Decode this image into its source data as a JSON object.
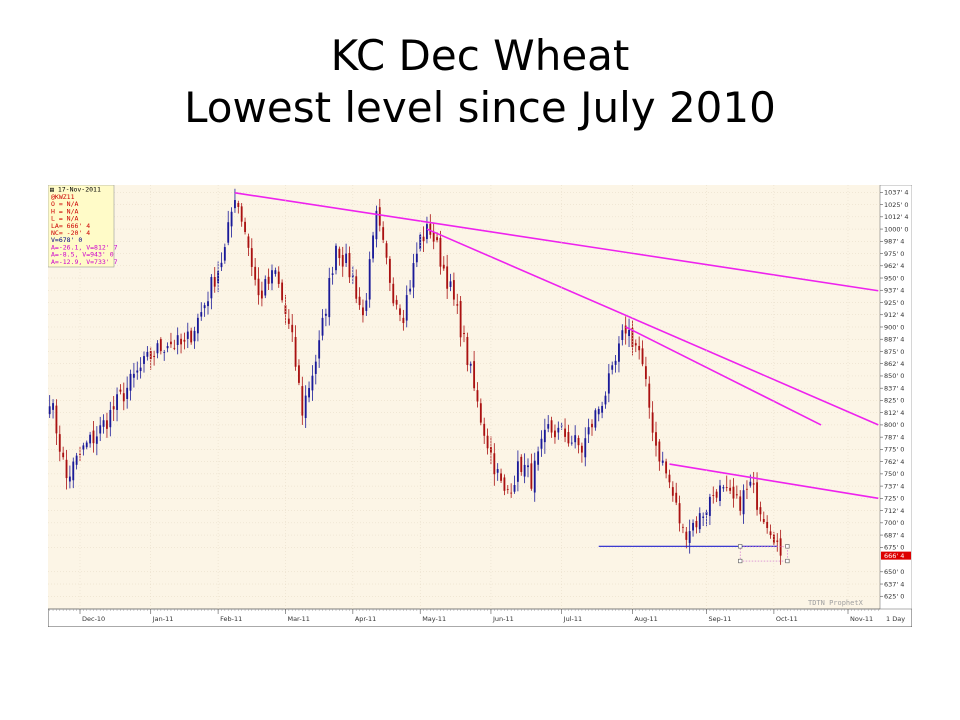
{
  "slide": {
    "title_line1": "KC Dec Wheat",
    "title_line2": "Lowest level since July 2010"
  },
  "chart_data": {
    "type": "candlestick",
    "symbol": "@KWZ11",
    "date": "17-Nov-2011",
    "info_lines": [
      {
        "text": "@KWZ11",
        "color": "#cc0000"
      },
      {
        "text": "O = N/A",
        "color": "#cc0000"
      },
      {
        "text": "H = N/A",
        "color": "#cc0000"
      },
      {
        "text": "L = N/A",
        "color": "#cc0000"
      },
      {
        "text": "LA= 666' 4",
        "color": "#cc0000"
      },
      {
        "text": "NC= -20' 4",
        "color": "#cc0000"
      },
      {
        "text": "V=678' 0",
        "color": "#000080"
      },
      {
        "text": "A=-26.1, V=812' 7",
        "color": "#cc00cc"
      },
      {
        "text": "A=-8.5, V=943' 0",
        "color": "#cc00cc"
      },
      {
        "text": "A=-12.9, V=733' 7",
        "color": "#cc00cc"
      }
    ],
    "y_ticks": [
      "1037' 4",
      "1025' 0",
      "1012' 4",
      "1000' 0",
      "987' 4",
      "975' 0",
      "962' 4",
      "950' 0",
      "937' 4",
      "925' 0",
      "912' 4",
      "900' 0",
      "887' 4",
      "875' 0",
      "862' 4",
      "850' 0",
      "837' 4",
      "825' 0",
      "812' 4",
      "800' 0",
      "787' 4",
      "775' 0",
      "762' 4",
      "750' 0",
      "737' 4",
      "725' 0",
      "712' 4",
      "700' 0",
      "687' 4",
      "675' 0",
      "666' 4",
      "650' 0",
      "637' 4",
      "625' 0"
    ],
    "x_labels": [
      "Dec-10",
      "Jan-11",
      "Feb-11",
      "Mar-11",
      "Apr-11",
      "May-11",
      "Jun-11",
      "Jul-11",
      "Aug-11",
      "Sep-11",
      "Oct-11",
      "Nov-11"
    ],
    "ylim": [
      612,
      1045
    ],
    "last_price_label": "666' 4",
    "last_price": 666.5,
    "interval_label": "1 Day",
    "watermark": "TDTN ProphetX",
    "colors": {
      "up": "#1a1a99",
      "down": "#aa1111",
      "trend": "#ee22ee",
      "support": "#2222cc",
      "plot_bg": "#fcf5e6"
    },
    "anchors": [
      [
        0,
        830
      ],
      [
        5,
        745
      ],
      [
        10,
        775
      ],
      [
        15,
        795
      ],
      [
        20,
        822
      ],
      [
        25,
        848
      ],
      [
        30,
        870
      ],
      [
        35,
        885
      ],
      [
        40,
        880
      ],
      [
        45,
        915
      ],
      [
        52,
        978
      ],
      [
        55,
        1037
      ],
      [
        58,
        1000
      ],
      [
        62,
        930
      ],
      [
        67,
        955
      ],
      [
        72,
        885
      ],
      [
        75,
        815
      ],
      [
        80,
        880
      ],
      [
        85,
        985
      ],
      [
        90,
        950
      ],
      [
        93,
        910
      ],
      [
        97,
        1010
      ],
      [
        102,
        935
      ],
      [
        105,
        915
      ],
      [
        110,
        990
      ],
      [
        113,
        1000
      ],
      [
        118,
        950
      ],
      [
        122,
        900
      ],
      [
        127,
        820
      ],
      [
        131,
        770
      ],
      [
        135,
        728
      ],
      [
        140,
        760
      ],
      [
        143,
        745
      ],
      [
        148,
        795
      ],
      [
        153,
        790
      ],
      [
        158,
        775
      ],
      [
        162,
        810
      ],
      [
        167,
        850
      ],
      [
        171,
        900
      ],
      [
        175,
        875
      ],
      [
        180,
        780
      ],
      [
        184,
        740
      ],
      [
        188,
        690
      ],
      [
        193,
        705
      ],
      [
        198,
        735
      ],
      [
        204,
        718
      ],
      [
        208,
        737
      ],
      [
        212,
        710
      ],
      [
        215,
        690
      ],
      [
        217,
        666.5
      ]
    ],
    "trendlines": [
      {
        "from": [
          55,
          1037
        ],
        "to": [
          246,
          937
        ]
      },
      {
        "from": [
          112,
          1000
        ],
        "to": [
          246,
          800
        ]
      },
      {
        "from": [
          171,
          900
        ],
        "to": [
          229,
          800
        ]
      },
      {
        "from": [
          184,
          760
        ],
        "to": [
          246,
          725
        ]
      }
    ],
    "support_line": {
      "from": [
        163,
        676
      ],
      "to": [
        216,
        676
      ]
    },
    "selection_box": {
      "x0": 205,
      "x1": 219,
      "y0": 676,
      "y1": 661
    }
  }
}
